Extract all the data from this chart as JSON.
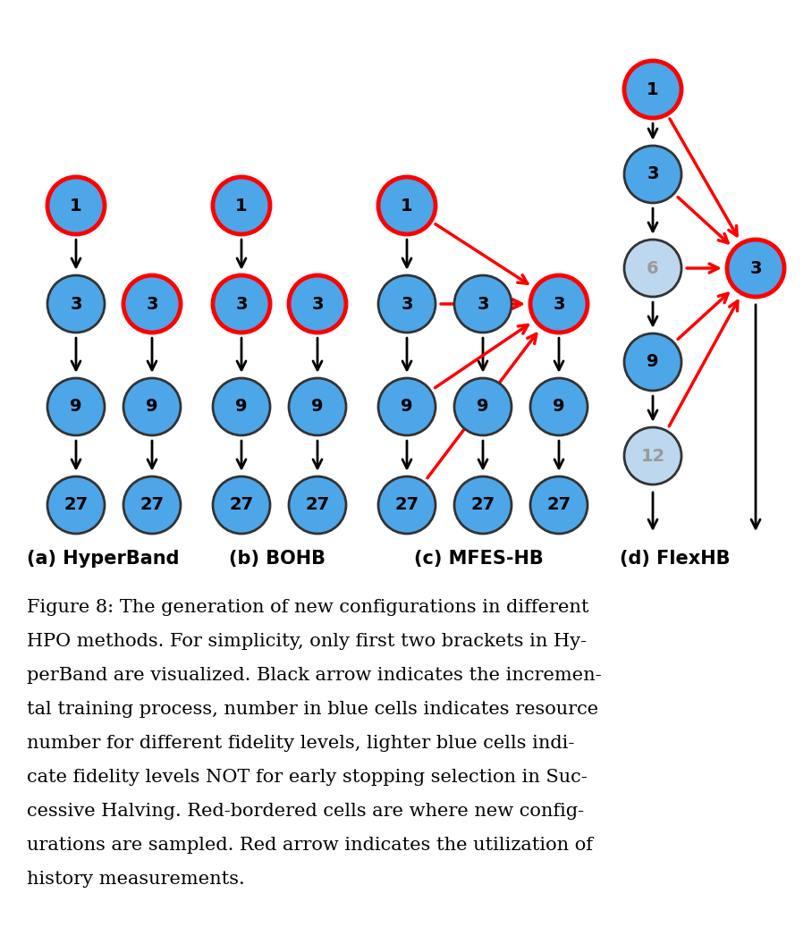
{
  "bg_color": "#ffffff",
  "blue_normal": "#4DA6E8",
  "blue_light": "#BDD7EE",
  "red_border": "#FF0000",
  "black": "#000000",
  "caption_labels": [
    "(a) HyperBand",
    "(b) BOHB",
    "(c) MFES-HB",
    "(d) FlexHB"
  ],
  "figure_text_lines": [
    "Figure 8: The generation of new configurations in different",
    "HPO methods. For simplicity, only first two brackets in Hy-",
    "perBand are visualized. Black arrow indicates the incremen-",
    "tal training process, number in blue cells indicates resource",
    "number for different fidelity levels, lighter blue cells indi-",
    "cate fidelity levels NOT for early stopping selection in Suc-",
    "cessive Halving. Red-bordered cells are where new config-",
    "urations are sampled. Red arrow indicates the utilization of",
    "history measurements."
  ]
}
